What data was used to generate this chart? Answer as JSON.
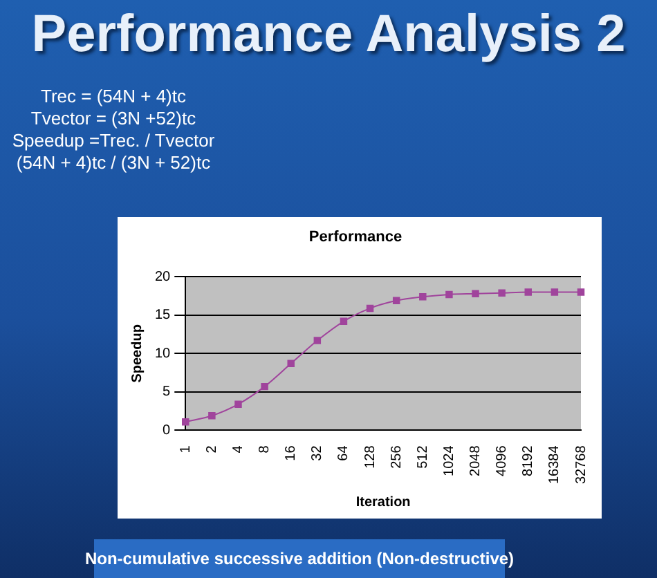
{
  "chart_data": {
    "type": "line",
    "title": "Performance Analysis 2",
    "subtitle": "Performance",
    "xlabel": "Iteration",
    "ylabel": "Speedup",
    "annotations": [
      "Trec = (54N + 4)tc",
      "Tvector = (3N +52)tc",
      "Speedup =Trec. / Tvector",
      "(54N + 4)tc / (3N + 52)tc",
      "Non-cumulative successive addition (Non-destructive)"
    ],
    "categories": [
      "1",
      "2",
      "4",
      "8",
      "16",
      "32",
      "64",
      "128",
      "256",
      "512",
      "1024",
      "2048",
      "4096",
      "8192",
      "16384",
      "32768"
    ],
    "series": [
      {
        "color": "#a0449c",
        "values": [
          1.1,
          1.9,
          3.4,
          5.7,
          8.7,
          11.7,
          14.2,
          15.9,
          16.9,
          17.4,
          17.7,
          17.8,
          17.9,
          18,
          18,
          18
        ]
      }
    ],
    "ylim": [
      0,
      20
    ],
    "yticks": [
      0,
      5,
      10,
      15,
      20
    ],
    "grid": "y",
    "legend": false,
    "marker": "square",
    "line_style": "solid"
  }
}
